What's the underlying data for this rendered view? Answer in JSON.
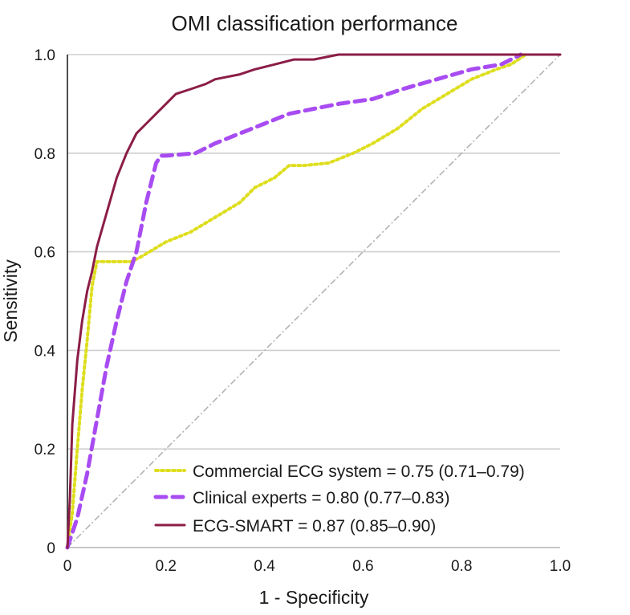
{
  "chart_data": {
    "type": "line",
    "title": "OMI classification performance",
    "xlabel": "1 - Specificity",
    "ylabel": "Sensitivity",
    "xlim": [
      0,
      1
    ],
    "ylim": [
      0,
      1
    ],
    "grid": true,
    "legend_position": "bottom-right",
    "x_ticks": [
      0,
      0.2,
      0.4,
      0.6,
      0.8,
      1.0
    ],
    "x_tick_labels": [
      "0",
      "0.2",
      "0.4",
      "0.6",
      "0.8",
      "1.0"
    ],
    "y_ticks": [
      0,
      0.2,
      0.4,
      0.6,
      0.8,
      1.0
    ],
    "y_tick_labels": [
      "0",
      "0.2",
      "0.4",
      "0.6",
      "0.8",
      "1.0"
    ],
    "reference_line": {
      "name": "chance",
      "x": [
        0,
        1
      ],
      "y": [
        0,
        1
      ],
      "color": "#b0b0b0"
    },
    "series": [
      {
        "name": "Commercial ECG system = 0.75 (0.71–0.79)",
        "color": "#dede1e",
        "style": "dotted",
        "x": [
          0,
          0.01,
          0.02,
          0.03,
          0.04,
          0.05,
          0.06,
          0.1,
          0.13,
          0.15,
          0.2,
          0.25,
          0.3,
          0.35,
          0.38,
          0.42,
          0.45,
          0.48,
          0.53,
          0.58,
          0.62,
          0.67,
          0.72,
          0.77,
          0.82,
          0.87,
          0.9,
          0.93
        ],
        "y": [
          0,
          0.07,
          0.2,
          0.32,
          0.42,
          0.53,
          0.58,
          0.58,
          0.58,
          0.59,
          0.62,
          0.64,
          0.67,
          0.7,
          0.73,
          0.75,
          0.775,
          0.775,
          0.78,
          0.8,
          0.82,
          0.85,
          0.89,
          0.92,
          0.95,
          0.97,
          0.98,
          1.0
        ]
      },
      {
        "name": "Clinical experts = 0.80 (0.77–0.83)",
        "color": "#a84cf2",
        "style": "dashed",
        "x": [
          0,
          0.02,
          0.04,
          0.06,
          0.08,
          0.1,
          0.12,
          0.14,
          0.16,
          0.18,
          0.19,
          0.2,
          0.26,
          0.3,
          0.35,
          0.4,
          0.45,
          0.5,
          0.55,
          0.62,
          0.68,
          0.75,
          0.82,
          0.88,
          0.92
        ],
        "y": [
          0,
          0.06,
          0.15,
          0.26,
          0.37,
          0.46,
          0.54,
          0.6,
          0.7,
          0.78,
          0.795,
          0.795,
          0.8,
          0.82,
          0.84,
          0.86,
          0.88,
          0.89,
          0.9,
          0.91,
          0.93,
          0.95,
          0.97,
          0.98,
          1.0
        ]
      },
      {
        "name": "ECG-SMART = 0.87 (0.85–0.90)",
        "color": "#8b1d46",
        "style": "solid",
        "x": [
          0,
          0.005,
          0.01,
          0.02,
          0.03,
          0.04,
          0.05,
          0.06,
          0.08,
          0.1,
          0.12,
          0.14,
          0.16,
          0.18,
          0.2,
          0.22,
          0.25,
          0.28,
          0.3,
          0.35,
          0.38,
          0.42,
          0.46,
          0.5,
          0.55,
          0.6,
          0.7,
          0.8,
          0.9,
          1.0
        ],
        "y": [
          0,
          0.1,
          0.25,
          0.38,
          0.46,
          0.52,
          0.56,
          0.61,
          0.68,
          0.75,
          0.8,
          0.84,
          0.86,
          0.88,
          0.9,
          0.92,
          0.93,
          0.94,
          0.95,
          0.96,
          0.97,
          0.98,
          0.99,
          0.99,
          1.0,
          1.0,
          1.0,
          1.0,
          1.0,
          1.0
        ]
      }
    ]
  }
}
